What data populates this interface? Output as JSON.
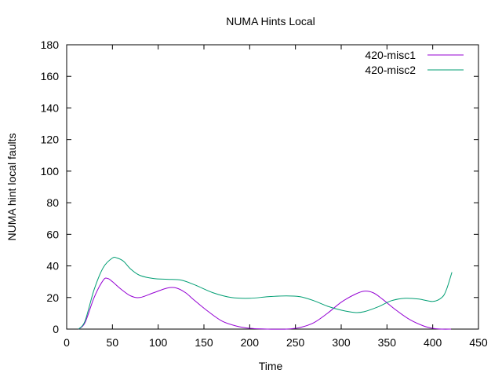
{
  "chart_data": {
    "type": "line",
    "title": "NUMA Hints Local",
    "xlabel": "Time",
    "ylabel": "NUMA hint local faults",
    "xlim": [
      0,
      450
    ],
    "ylim": [
      0,
      180
    ],
    "xticks": [
      0,
      50,
      100,
      150,
      200,
      250,
      300,
      350,
      400,
      450
    ],
    "yticks": [
      0,
      20,
      40,
      60,
      80,
      100,
      120,
      140,
      160,
      180
    ],
    "grid": false,
    "legend_position": "top-right",
    "series": [
      {
        "name": "420-misc1",
        "color": "#9400d3",
        "points": [
          [
            13,
            0
          ],
          [
            20,
            4
          ],
          [
            30,
            20
          ],
          [
            40,
            31
          ],
          [
            45,
            32
          ],
          [
            50,
            30
          ],
          [
            60,
            25
          ],
          [
            70,
            21
          ],
          [
            80,
            20
          ],
          [
            95,
            23
          ],
          [
            110,
            26
          ],
          [
            120,
            26
          ],
          [
            130,
            23
          ],
          [
            140,
            18
          ],
          [
            155,
            11
          ],
          [
            170,
            5
          ],
          [
            185,
            2
          ],
          [
            200,
            0.5
          ],
          [
            220,
            0
          ],
          [
            240,
            0
          ],
          [
            255,
            1
          ],
          [
            270,
            4
          ],
          [
            285,
            10
          ],
          [
            300,
            17
          ],
          [
            315,
            22
          ],
          [
            325,
            24
          ],
          [
            335,
            23
          ],
          [
            345,
            19
          ],
          [
            360,
            12
          ],
          [
            375,
            6
          ],
          [
            390,
            2
          ],
          [
            400,
            0.5
          ],
          [
            410,
            0
          ],
          [
            420,
            0
          ]
        ]
      },
      {
        "name": "420-misc2",
        "color": "#009e73",
        "points": [
          [
            13,
            0
          ],
          [
            20,
            5
          ],
          [
            30,
            25
          ],
          [
            40,
            39
          ],
          [
            50,
            45
          ],
          [
            55,
            45
          ],
          [
            62,
            43
          ],
          [
            70,
            38
          ],
          [
            80,
            34
          ],
          [
            95,
            32
          ],
          [
            110,
            31.5
          ],
          [
            125,
            31
          ],
          [
            140,
            28
          ],
          [
            160,
            23
          ],
          [
            180,
            20
          ],
          [
            200,
            19.5
          ],
          [
            220,
            20.5
          ],
          [
            240,
            21
          ],
          [
            255,
            20.5
          ],
          [
            270,
            18
          ],
          [
            285,
            14.5
          ],
          [
            300,
            12
          ],
          [
            315,
            10.5
          ],
          [
            325,
            11
          ],
          [
            340,
            14
          ],
          [
            355,
            18
          ],
          [
            370,
            19.5
          ],
          [
            385,
            19
          ],
          [
            400,
            17.5
          ],
          [
            410,
            20
          ],
          [
            415,
            25
          ],
          [
            421,
            36
          ]
        ]
      }
    ]
  }
}
